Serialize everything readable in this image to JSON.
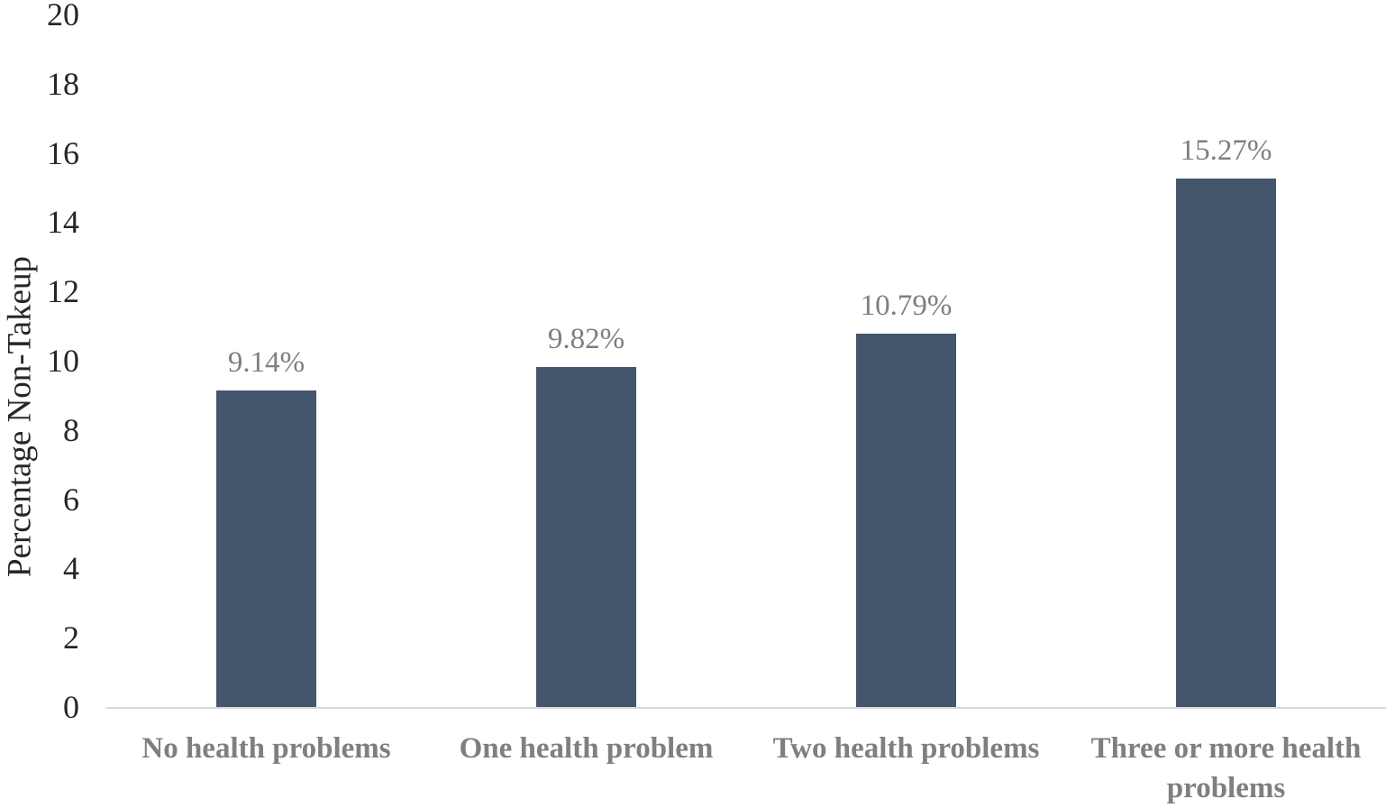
{
  "figure": {
    "background_color": "#ffffff"
  },
  "chart_data": {
    "type": "bar",
    "title": "",
    "xlabel": "",
    "ylabel": "Percentage Non-Takeup",
    "categories": [
      "No health problems",
      "One health problem",
      "Two health problems",
      "Three or more health problems"
    ],
    "category_lines": [
      [
        "No health problems"
      ],
      [
        "One health problem"
      ],
      [
        "Two health problems"
      ],
      [
        "Three or more health",
        "problems"
      ]
    ],
    "values": [
      9.14,
      9.82,
      10.79,
      15.27
    ],
    "value_labels": [
      "9.14%",
      "9.82%",
      "10.79%",
      "15.27%"
    ],
    "ylim": [
      0,
      20
    ],
    "yticks": [
      0,
      2,
      4,
      6,
      8,
      10,
      12,
      14,
      16,
      18,
      20
    ],
    "grid": false,
    "legend": false,
    "bar_color": "#44566c",
    "value_label_color": "#7f7f7f",
    "category_label_color": "#7f7f7f",
    "tick_label_color": "#262626",
    "axis_title_color": "#262626",
    "axis_line_color": "#d9d9d9"
  }
}
